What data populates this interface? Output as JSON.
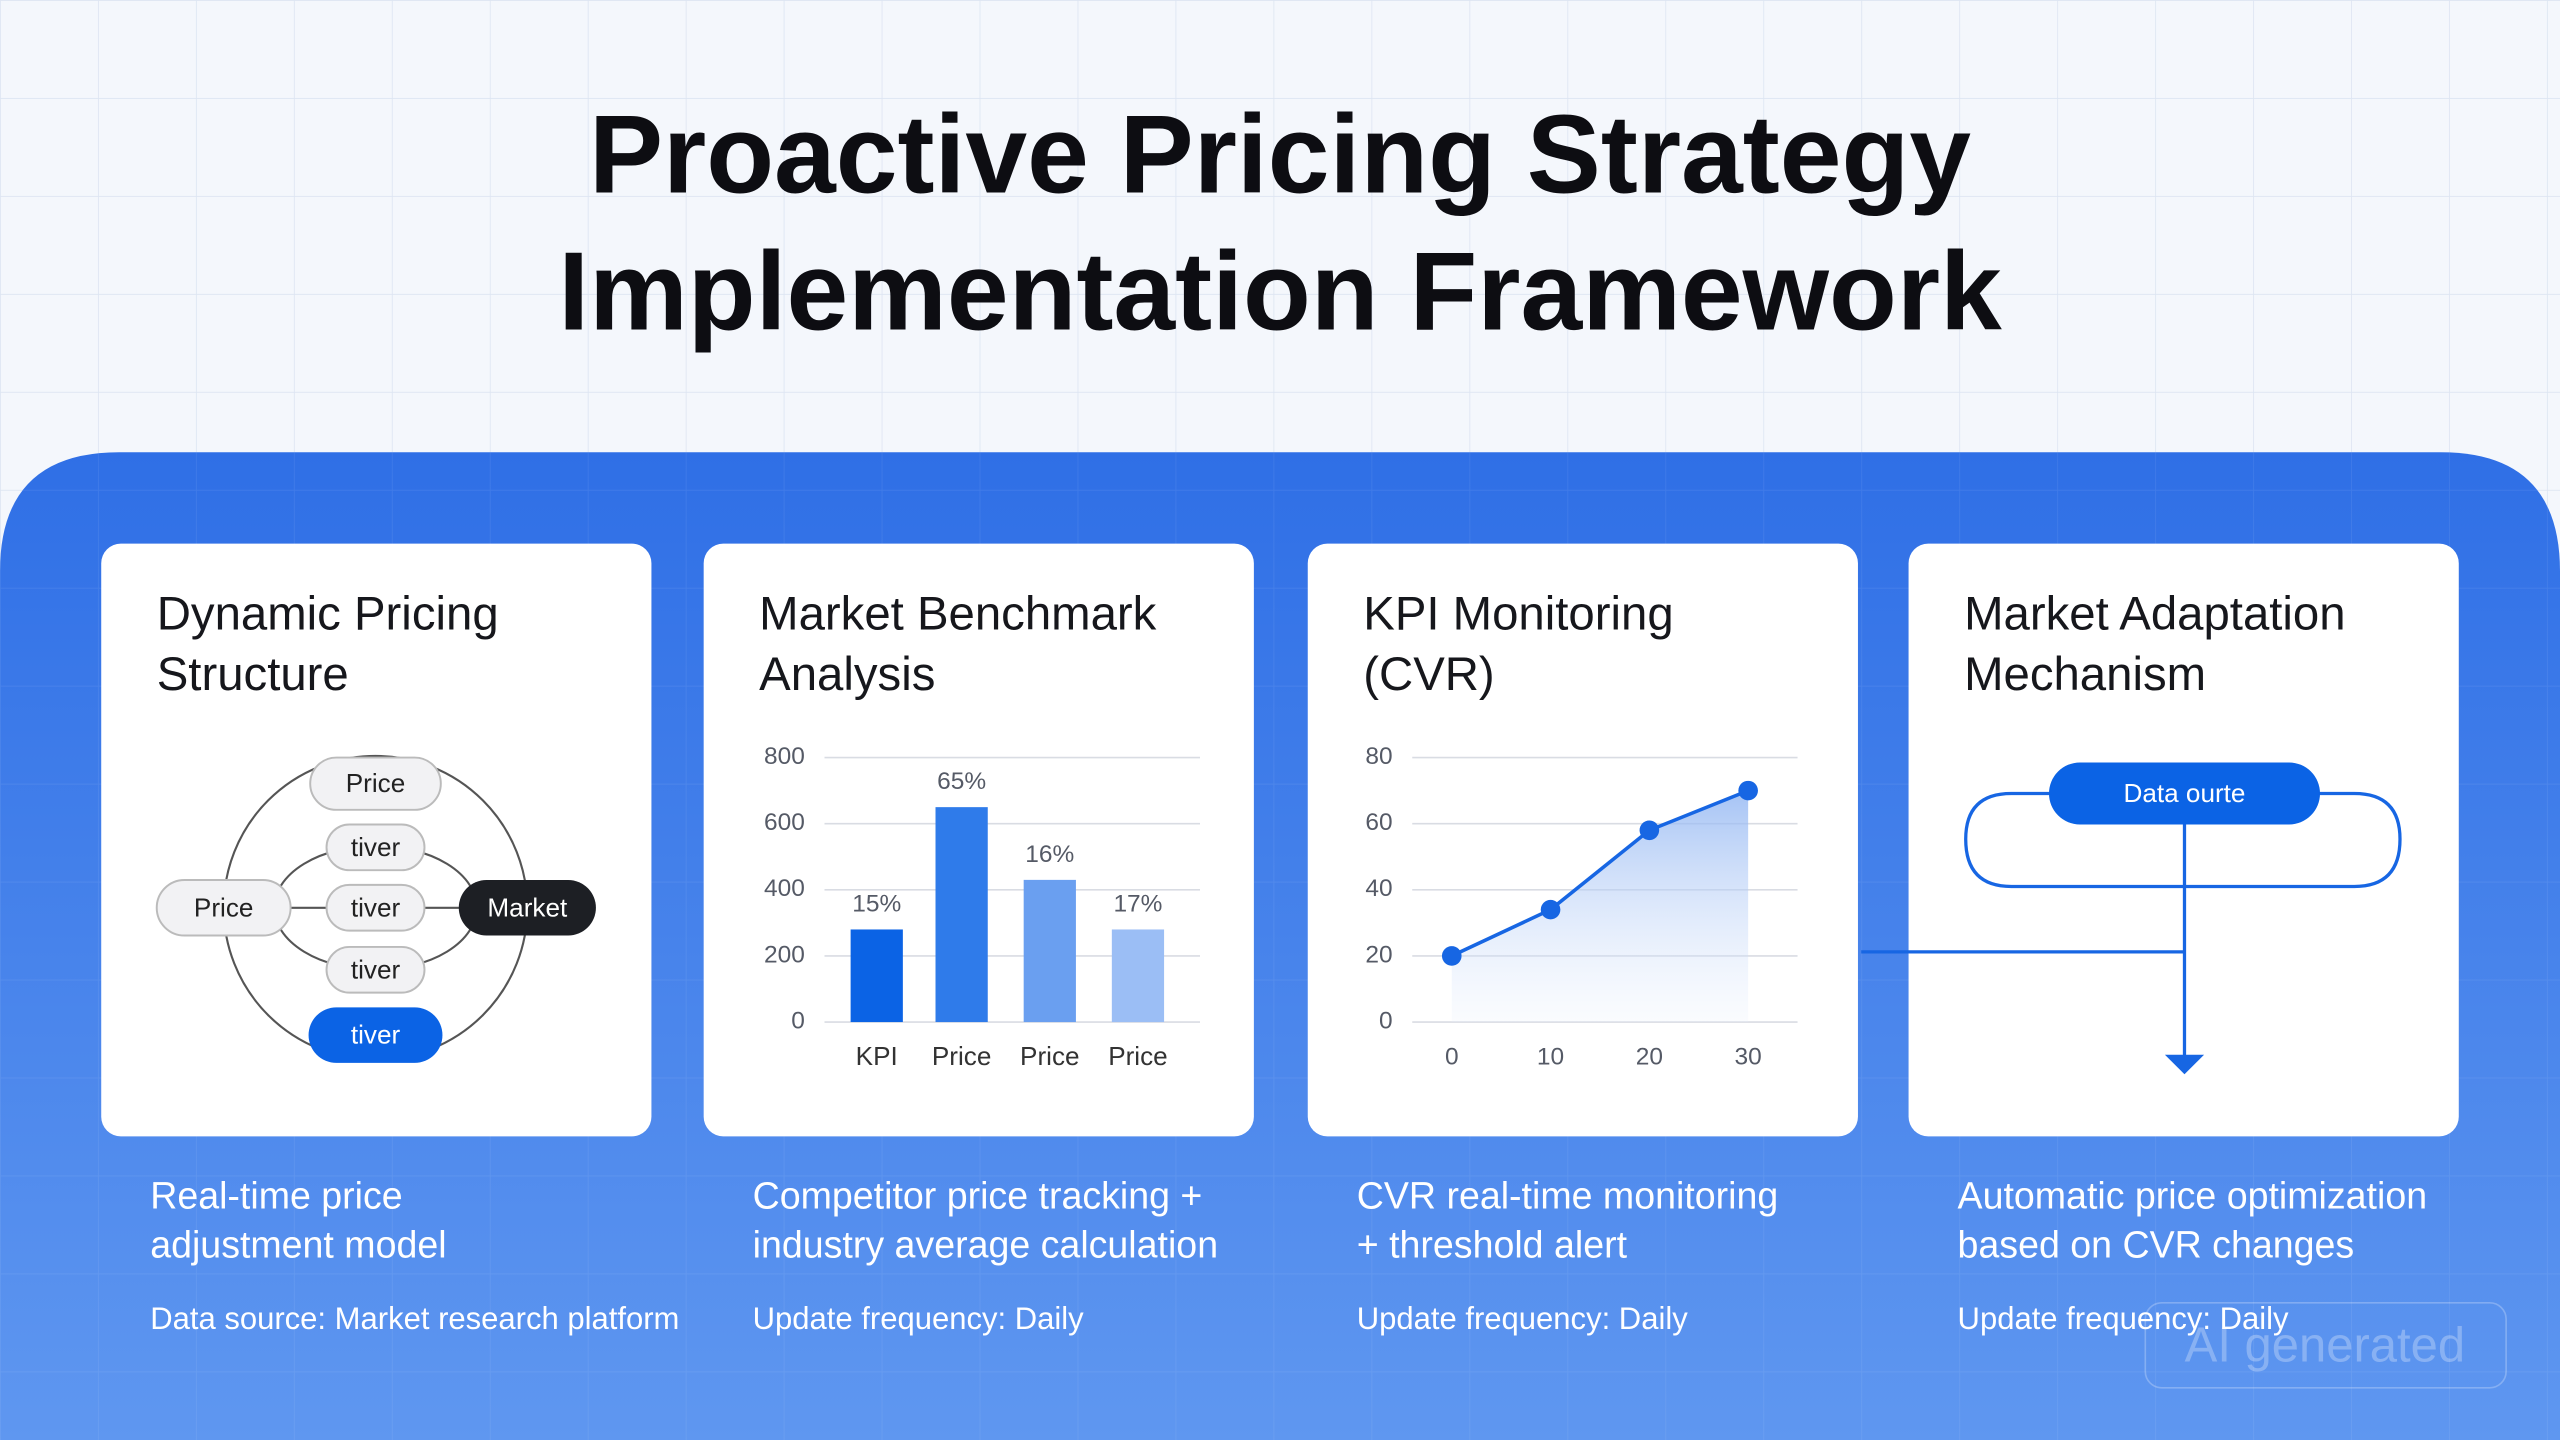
{
  "header": {
    "title_lines": [
      "Proactive Pricing Strategy",
      "Implementation Framework"
    ]
  },
  "cards": [
    {
      "title_lines": [
        "Dynamic Pricing",
        "Structure"
      ],
      "diagram": {
        "nodes": [
          {
            "label": "Price"
          },
          {
            "label": "tiver"
          },
          {
            "label": "Price"
          },
          {
            "label": "tiver"
          },
          {
            "label": "Market"
          },
          {
            "label": "tiver"
          },
          {
            "label": "tiver"
          }
        ]
      },
      "description_lines": [
        "Real-time price",
        "adjustment model"
      ],
      "note": "Data source: Market research platform"
    },
    {
      "title_lines": [
        "Market Benchmark",
        "Analysis"
      ],
      "chart": {
        "type": "bar",
        "categories": [
          "KPI",
          "Price",
          "Price",
          "Price"
        ],
        "values": [
          280,
          650,
          430,
          280
        ],
        "annotations": [
          "15%",
          "65%",
          "16%",
          "17%"
        ],
        "colors": [
          "#0b63e5",
          "#2f7bea",
          "#6a9ff0",
          "#9bbef5"
        ],
        "ylim": [
          0,
          800
        ],
        "yticks": [
          0,
          200,
          400,
          600,
          800
        ],
        "grid": true
      },
      "description_lines": [
        "Competitor price tracking +",
        "industry average calculation"
      ],
      "note": "Update frequency: Daily"
    },
    {
      "title_lines": [
        "KPI Monitoring",
        "(CVR)"
      ],
      "chart": {
        "type": "line",
        "x": [
          0,
          10,
          20,
          30
        ],
        "values": [
          20,
          34,
          58,
          70
        ],
        "color": "#1766e3",
        "xlim": [
          -4,
          35
        ],
        "xticks": [
          0,
          10,
          20,
          30
        ],
        "ylim": [
          0,
          80
        ],
        "yticks": [
          0,
          20,
          40,
          60,
          80
        ],
        "grid": true
      },
      "description_lines": [
        "CVR real-time monitoring",
        "+ threshold alert"
      ],
      "note": "Update frequency: Daily"
    },
    {
      "title_lines": [
        "Market Adaptation",
        "Mechanism"
      ],
      "diagram": {
        "nodes": [
          {
            "label": "Data ourte"
          }
        ]
      },
      "description_lines": [
        "Automatic price optimization",
        "based on CVR changes"
      ],
      "note": "Update frequency: Daily"
    }
  ],
  "watermark": "AI generated"
}
